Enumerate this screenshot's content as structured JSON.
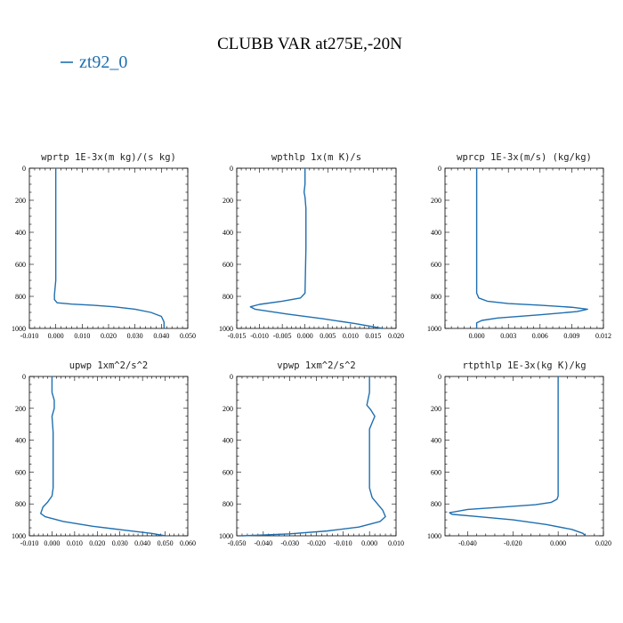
{
  "figure": {
    "title": "CLUBB VAR at275E,-20N",
    "legend": {
      "label": "zt92_0",
      "color": "#1f6fb0"
    }
  },
  "chart_data": [
    {
      "type": "line",
      "title": "wprtp  1E-3x(m kg)/(s kg)",
      "xlim": [
        -0.01,
        0.05
      ],
      "ylim": [
        1000,
        0
      ],
      "xticks": [
        -0.01,
        0.0,
        0.01,
        0.02,
        0.03,
        0.04,
        0.05
      ],
      "xtick_labels": [
        "-0.010",
        "0.000",
        "0.010",
        "0.020",
        "0.030",
        "0.040",
        "0.050"
      ],
      "yticks": [
        0,
        200,
        400,
        600,
        800,
        1000
      ],
      "ytick_labels": [
        "0",
        "200",
        "400",
        "600",
        "800",
        "1000"
      ],
      "series": [
        {
          "color": "#1f6fb0",
          "x": [
            0.0,
            0.0,
            0.0,
            0.0,
            -0.0005,
            -0.0005,
            0.0005,
            0.006,
            0.014,
            0.022,
            0.03,
            0.036,
            0.04,
            0.041,
            0.041
          ],
          "y": [
            0,
            200,
            400,
            700,
            790,
            820,
            840,
            848,
            855,
            865,
            880,
            900,
            925,
            960,
            1000
          ]
        }
      ]
    },
    {
      "type": "line",
      "title": "wpthlp  1x(m K)/s",
      "xlim": [
        -0.015,
        0.02
      ],
      "ylim": [
        1000,
        0
      ],
      "xticks": [
        -0.015,
        -0.01,
        -0.005,
        0.0,
        0.005,
        0.01,
        0.015,
        0.02
      ],
      "xtick_labels": [
        "-0.015",
        "-0.010",
        "-0.005",
        "0.000",
        "0.005",
        "0.010",
        "0.015",
        "0.020"
      ],
      "yticks": [
        0,
        200,
        400,
        600,
        800,
        1000
      ],
      "ytick_labels": [
        "0",
        "200",
        "400",
        "600",
        "800",
        "1000"
      ],
      "series": [
        {
          "color": "#1f6fb0",
          "x": [
            0.0,
            0.0,
            -0.0002,
            0.0,
            0.0002,
            0.0002,
            0.0,
            -0.001,
            -0.005,
            -0.01,
            -0.012,
            -0.011,
            -0.004,
            0.004,
            0.011,
            0.017
          ],
          "y": [
            0,
            100,
            150,
            180,
            250,
            500,
            780,
            810,
            830,
            850,
            865,
            880,
            910,
            940,
            970,
            1000
          ]
        }
      ]
    },
    {
      "type": "line",
      "title": "wprcp  1E-3x(m/s) (kg/kg)",
      "xlim": [
        -0.003,
        0.012
      ],
      "ylim": [
        1000,
        0
      ],
      "xticks": [
        0.0,
        0.003,
        0.006,
        0.009,
        0.012
      ],
      "xtick_labels": [
        "0.000",
        "0.003",
        "0.006",
        "0.009",
        "0.012"
      ],
      "yticks": [
        0,
        200,
        400,
        600,
        800,
        1000
      ],
      "ytick_labels": [
        "0",
        "200",
        "400",
        "600",
        "800",
        "1000"
      ],
      "series": [
        {
          "color": "#1f6fb0",
          "x": [
            0.0,
            0.0,
            0.0,
            0.0002,
            0.001,
            0.003,
            0.006,
            0.009,
            0.0105,
            0.0095,
            0.006,
            0.002,
            0.0005,
            0.0,
            0.0
          ],
          "y": [
            0,
            400,
            780,
            810,
            830,
            845,
            855,
            868,
            880,
            895,
            915,
            935,
            950,
            965,
            1000
          ]
        }
      ]
    },
    {
      "type": "line",
      "title": "upwp  1xm^2/s^2",
      "xlim": [
        -0.01,
        0.06
      ],
      "ylim": [
        1000,
        0
      ],
      "xticks": [
        -0.01,
        0.0,
        0.01,
        0.02,
        0.03,
        0.04,
        0.05,
        0.06
      ],
      "xtick_labels": [
        "-0.010",
        "0.000",
        "0.010",
        "0.020",
        "0.030",
        "0.040",
        "0.050",
        "0.060"
      ],
      "yticks": [
        0,
        200,
        400,
        600,
        800,
        1000
      ],
      "ytick_labels": [
        "0",
        "200",
        "400",
        "600",
        "800",
        "1000"
      ],
      "series": [
        {
          "color": "#1f6fb0",
          "x": [
            0.0,
            0.0,
            0.001,
            0.001,
            0.0,
            0.0005,
            0.0005,
            0.0,
            -0.002,
            -0.004,
            -0.005,
            -0.003,
            0.005,
            0.018,
            0.032,
            0.044,
            0.05
          ],
          "y": [
            0,
            100,
            150,
            200,
            250,
            350,
            700,
            750,
            790,
            820,
            860,
            880,
            910,
            940,
            965,
            985,
            1000
          ]
        }
      ]
    },
    {
      "type": "line",
      "title": "vpwp  1xm^2/s^2",
      "xlim": [
        -0.05,
        0.01
      ],
      "ylim": [
        1000,
        0
      ],
      "xticks": [
        -0.05,
        -0.04,
        -0.03,
        -0.02,
        -0.01,
        0.0,
        0.01
      ],
      "xtick_labels": [
        "-0.050",
        "-0.040",
        "-0.030",
        "-0.020",
        "-0.010",
        "0.000",
        "0.010"
      ],
      "yticks": [
        0,
        200,
        400,
        600,
        800,
        1000
      ],
      "ytick_labels": [
        "0",
        "200",
        "400",
        "600",
        "800",
        "1000"
      ],
      "series": [
        {
          "color": "#1f6fb0",
          "x": [
            0.0,
            0.0,
            -0.001,
            0.0005,
            0.002,
            0.001,
            0.0,
            0.0,
            0.001,
            0.003,
            0.005,
            0.006,
            0.004,
            -0.004,
            -0.016,
            -0.03,
            -0.042,
            -0.048
          ],
          "y": [
            0,
            100,
            180,
            210,
            250,
            290,
            330,
            700,
            760,
            800,
            840,
            880,
            910,
            945,
            970,
            988,
            996,
            1000
          ]
        }
      ]
    },
    {
      "type": "line",
      "title": "rtpthlp  1E-3x(kg K)/kg",
      "xlim": [
        -0.05,
        0.02
      ],
      "ylim": [
        1000,
        0
      ],
      "xticks": [
        -0.04,
        -0.02,
        0.0,
        0.02
      ],
      "xtick_labels": [
        "-0.040",
        "-0.020",
        "0.000",
        "0.020"
      ],
      "yticks": [
        0,
        200,
        400,
        600,
        800,
        1000
      ],
      "ytick_labels": [
        "0",
        "200",
        "400",
        "600",
        "800",
        "1000"
      ],
      "series": [
        {
          "color": "#1f6fb0",
          "x": [
            0.0,
            0.0,
            0.0,
            -0.0005,
            -0.003,
            -0.01,
            -0.025,
            -0.04,
            -0.048,
            -0.047,
            -0.035,
            -0.02,
            -0.005,
            0.006,
            0.011,
            0.012
          ],
          "y": [
            0,
            400,
            750,
            770,
            790,
            805,
            820,
            835,
            855,
            865,
            880,
            900,
            930,
            960,
            985,
            1000
          ]
        }
      ]
    }
  ]
}
